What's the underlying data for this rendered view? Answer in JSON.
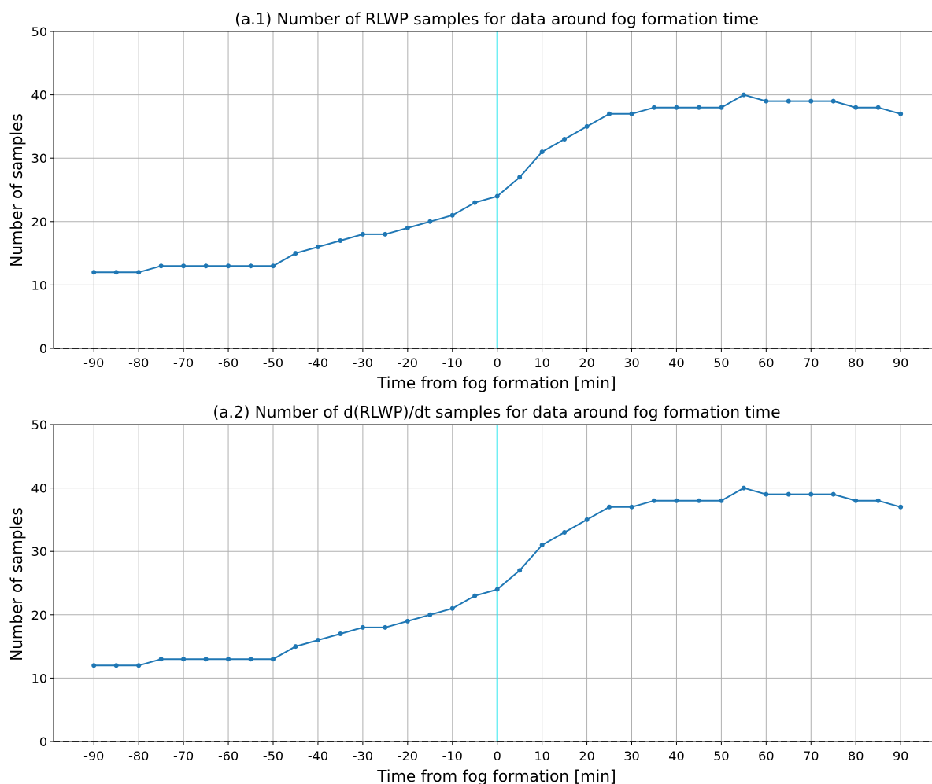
{
  "chart_data": [
    {
      "type": "line",
      "title": "(a.1) Number of RLWP samples for data around fog formation time",
      "xlabel": "Time from fog formation [min]",
      "ylabel": "Number of samples",
      "xlim": [
        -99,
        97
      ],
      "ylim": [
        0,
        50
      ],
      "xticks": [
        -90,
        -80,
        -70,
        -60,
        -50,
        -40,
        -30,
        -20,
        -10,
        0,
        10,
        20,
        30,
        40,
        50,
        60,
        70,
        80,
        90
      ],
      "yticks": [
        0,
        10,
        20,
        30,
        40,
        50
      ],
      "grid": true,
      "x": [
        -90,
        -85,
        -80,
        -75,
        -70,
        -65,
        -60,
        -55,
        -50,
        -45,
        -40,
        -35,
        -30,
        -25,
        -20,
        -15,
        -10,
        -5,
        0,
        5,
        10,
        15,
        20,
        25,
        30,
        35,
        40,
        45,
        50,
        55,
        60,
        65,
        70,
        75,
        80,
        85,
        90
      ],
      "y": [
        12,
        12,
        12,
        13,
        13,
        13,
        13,
        13,
        13,
        15,
        16,
        17,
        18,
        18,
        19,
        20,
        21,
        23,
        24,
        27,
        31,
        33,
        35,
        37,
        37,
        38,
        38,
        38,
        38,
        40,
        39,
        39,
        39,
        39,
        38,
        38,
        37
      ],
      "vline_x": 0,
      "hline_y": 0,
      "colors": {
        "series": "#1f77b4",
        "vline": "#33e6f0",
        "hline": "#444444"
      }
    },
    {
      "type": "line",
      "title": "(a.2) Number of d(RLWP)/dt samples for data around fog formation time",
      "xlabel": "Time from fog formation [min]",
      "ylabel": "Number of samples",
      "xlim": [
        -99,
        97
      ],
      "ylim": [
        0,
        50
      ],
      "xticks": [
        -90,
        -80,
        -70,
        -60,
        -50,
        -40,
        -30,
        -20,
        -10,
        0,
        10,
        20,
        30,
        40,
        50,
        60,
        70,
        80,
        90
      ],
      "yticks": [
        0,
        10,
        20,
        30,
        40,
        50
      ],
      "grid": true,
      "x": [
        -90,
        -85,
        -80,
        -75,
        -70,
        -65,
        -60,
        -55,
        -50,
        -45,
        -40,
        -35,
        -30,
        -25,
        -20,
        -15,
        -10,
        -5,
        0,
        5,
        10,
        15,
        20,
        25,
        30,
        35,
        40,
        45,
        50,
        55,
        60,
        65,
        70,
        75,
        80,
        85,
        90
      ],
      "y": [
        12,
        12,
        12,
        13,
        13,
        13,
        13,
        13,
        13,
        15,
        16,
        17,
        18,
        18,
        19,
        20,
        21,
        23,
        24,
        27,
        31,
        33,
        35,
        37,
        37,
        38,
        38,
        38,
        38,
        40,
        39,
        39,
        39,
        39,
        38,
        38,
        37
      ],
      "vline_x": 0,
      "hline_y": 0,
      "colors": {
        "series": "#1f77b4",
        "vline": "#33e6f0",
        "hline": "#444444"
      }
    }
  ]
}
